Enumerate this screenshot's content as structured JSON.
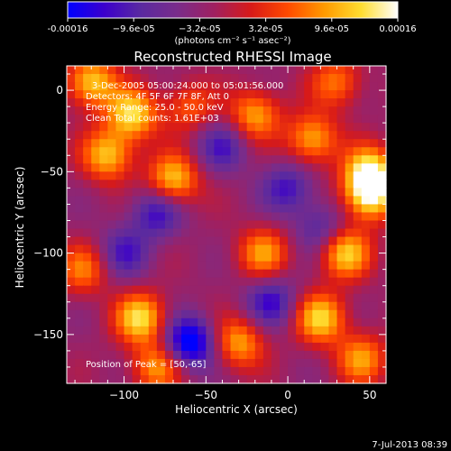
{
  "colorbar": {
    "tick_labels": [
      "-0.00016",
      "−9.6e-05",
      "−3.2e-05",
      "3.2e-05",
      "9.6e-05",
      "0.00016"
    ],
    "tick_values": [
      -0.00016,
      -9.6e-05,
      -3.2e-05,
      3.2e-05,
      9.6e-05,
      0.00016
    ],
    "units_label": "(photons cm⁻² s⁻¹ asec⁻²)",
    "colors": [
      "#0000ff",
      "#3c00cc",
      "#5a2aa0",
      "#7a2c8a",
      "#a02060",
      "#d81a18",
      "#ff4a00",
      "#ff9a00",
      "#ffdd30",
      "#ffffff"
    ]
  },
  "chart_data": {
    "type": "heatmap",
    "title": "Reconstructed RHESSI Image",
    "xlabel": "Heliocentric X (arcsec)",
    "ylabel": "Heliocentric Y (arcsec)",
    "xlim": [
      -135,
      60
    ],
    "ylim": [
      -180,
      15
    ],
    "x_ticks": [
      -100,
      -50,
      0,
      50
    ],
    "x_tick_labels": [
      "−100",
      "−50",
      "0",
      "50"
    ],
    "y_ticks": [
      0,
      -50,
      -100,
      -150
    ],
    "y_tick_labels": [
      "0",
      "−50",
      "−100",
      "−150"
    ],
    "info_lines": [
      "3-Dec-2005 05:00:24.000 to 05:01:56.000",
      "Detectors: 4F 5F 6F 7F 8F, Att 0",
      "Energy Range: 25.0 - 50.0 keV",
      "Clean    Total counts: 1.61E+03"
    ],
    "peak_label": "Position of Peak = [50,-65]",
    "peak_position": [
      50,
      -65
    ],
    "blobs": [
      {
        "x": -120,
        "y": 5,
        "amp": 0.9
      },
      {
        "x": -95,
        "y": -15,
        "amp": 0.95
      },
      {
        "x": -110,
        "y": -40,
        "amp": 0.85
      },
      {
        "x": -70,
        "y": -55,
        "amp": 0.9
      },
      {
        "x": -20,
        "y": -15,
        "amp": 0.75
      },
      {
        "x": 15,
        "y": -30,
        "amp": 0.8
      },
      {
        "x": 50,
        "y": -50,
        "amp": 1.0
      },
      {
        "x": 50,
        "y": -65,
        "amp": 1.0
      },
      {
        "x": 30,
        "y": 5,
        "amp": 0.6
      },
      {
        "x": -15,
        "y": -100,
        "amp": 0.7
      },
      {
        "x": 35,
        "y": -100,
        "amp": 0.9
      },
      {
        "x": -90,
        "y": -140,
        "amp": 0.95
      },
      {
        "x": -80,
        "y": -170,
        "amp": 0.7
      },
      {
        "x": -30,
        "y": -155,
        "amp": 0.75
      },
      {
        "x": 20,
        "y": -140,
        "amp": 0.9
      },
      {
        "x": 45,
        "y": -165,
        "amp": 0.7
      },
      {
        "x": -60,
        "y": -10,
        "amp": 0.5
      },
      {
        "x": -125,
        "y": -110,
        "amp": 0.6
      },
      {
        "x": -60,
        "y": -155,
        "amp": -1.0
      },
      {
        "x": -80,
        "y": -75,
        "amp": -0.6
      },
      {
        "x": -40,
        "y": -35,
        "amp": -0.5
      },
      {
        "x": 0,
        "y": -60,
        "amp": -0.55
      },
      {
        "x": -10,
        "y": -130,
        "amp": -0.6
      },
      {
        "x": -100,
        "y": -100,
        "amp": -0.5
      },
      {
        "x": 20,
        "y": -85,
        "amp": -0.45
      }
    ]
  },
  "footer": {
    "timestamp": "7-Jul-2013 08:39"
  }
}
